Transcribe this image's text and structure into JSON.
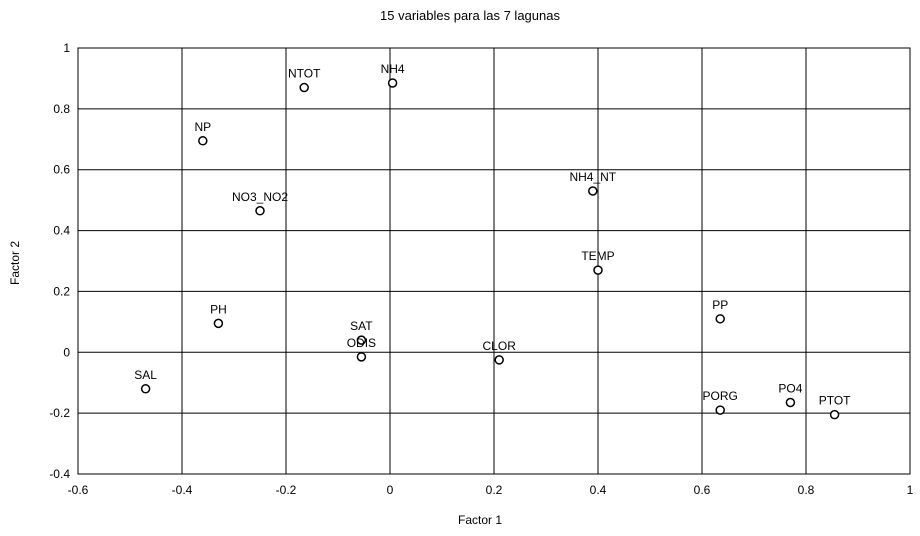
{
  "chart_data": {
    "type": "scatter",
    "title": "15 variables para las 7 lagunas",
    "xlabel": "Factor 1",
    "ylabel": "Factor 2",
    "xlim": [
      -0.6,
      1.0
    ],
    "ylim": [
      -0.4,
      1.0
    ],
    "xticks": [
      "-0.6",
      "-0.4",
      "-0.2",
      "0",
      "0.2",
      "0.4",
      "0.6",
      "0.8",
      "1"
    ],
    "yticks": [
      "-0.4",
      "-0.2",
      "0",
      "0.2",
      "0.4",
      "0.6",
      "0.8",
      "1"
    ],
    "grid": true,
    "points": [
      {
        "label": "NTOT",
        "x": -0.165,
        "y": 0.87
      },
      {
        "label": "NH4",
        "x": 0.005,
        "y": 0.885
      },
      {
        "label": "NP",
        "x": -0.36,
        "y": 0.695
      },
      {
        "label": "NH4_NT",
        "x": 0.39,
        "y": 0.53
      },
      {
        "label": "NO3_NO2",
        "x": -0.25,
        "y": 0.465
      },
      {
        "label": "TEMP",
        "x": 0.4,
        "y": 0.27
      },
      {
        "label": "PH",
        "x": -0.33,
        "y": 0.095
      },
      {
        "label": "SAT",
        "x": -0.055,
        "y": 0.04
      },
      {
        "label": "ODIS",
        "x": -0.055,
        "y": -0.015
      },
      {
        "label": "PP",
        "x": 0.635,
        "y": 0.11
      },
      {
        "label": "CLOR",
        "x": 0.21,
        "y": -0.025
      },
      {
        "label": "SAL",
        "x": -0.47,
        "y": -0.12
      },
      {
        "label": "PORG",
        "x": 0.635,
        "y": -0.19
      },
      {
        "label": "PO4",
        "x": 0.77,
        "y": -0.165
      },
      {
        "label": "PTOT",
        "x": 0.855,
        "y": -0.205
      }
    ]
  }
}
